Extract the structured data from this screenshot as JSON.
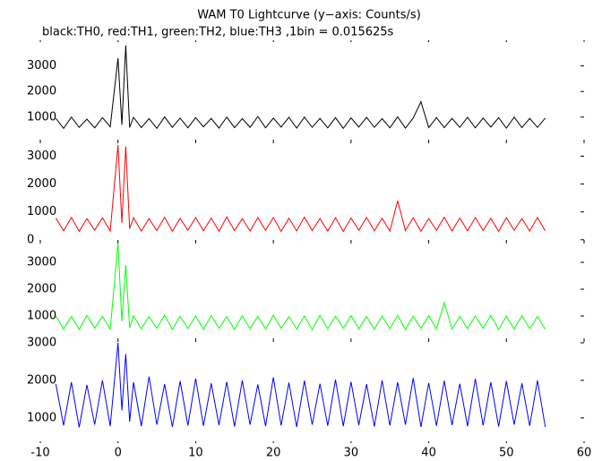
{
  "chart_data": [
    {
      "type": "line",
      "title": "WAM T0 Lightcurve (y−axis: Counts/s)",
      "subtitle": "black:TH0, red:TH1, green:TH2, blue:TH3 ,1bin = 0.015625s",
      "x": [
        -8,
        -7,
        -6,
        -5,
        -4,
        -3,
        -2,
        -1,
        0,
        0.5,
        1,
        1.5,
        2,
        3,
        4,
        5,
        6,
        7,
        8,
        9,
        10,
        11,
        12,
        13,
        14,
        15,
        16,
        17,
        18,
        19,
        20,
        21,
        22,
        23,
        24,
        25,
        26,
        27,
        28,
        29,
        30,
        31,
        32,
        33,
        34,
        35,
        36,
        37,
        38,
        39,
        40,
        41,
        42,
        43,
        44,
        45,
        46,
        47,
        48,
        49,
        50,
        51,
        52,
        53,
        54,
        55
      ],
      "series": [
        {
          "name": "TH0",
          "color": "#000000",
          "values": [
            950,
            560,
            1000,
            600,
            920,
            580,
            980,
            620,
            3300,
            700,
            3800,
            600,
            990,
            590,
            940,
            560,
            1010,
            600,
            960,
            580,
            980,
            620,
            950,
            570,
            1000,
            590,
            940,
            600,
            1020,
            580,
            960,
            610,
            990,
            570,
            1000,
            600,
            950,
            580,
            980,
            560,
            970,
            610,
            990,
            600,
            940,
            580,
            1010,
            570,
            960,
            1600,
            590,
            980,
            590,
            950,
            600,
            990,
            580,
            960,
            610,
            980,
            570,
            1000,
            590,
            950,
            600,
            960
          ]
        }
      ],
      "xlim": [
        -10,
        60
      ],
      "ylim": [
        50,
        4000
      ],
      "yticks": [
        1000,
        2000,
        3000
      ]
    },
    {
      "type": "line",
      "x": [
        -8,
        -7,
        -6,
        -5,
        -4,
        -3,
        -2,
        -1,
        0,
        0.5,
        1,
        1.5,
        2,
        3,
        4,
        5,
        6,
        7,
        8,
        9,
        10,
        11,
        12,
        13,
        14,
        15,
        16,
        17,
        18,
        19,
        20,
        21,
        22,
        23,
        24,
        25,
        26,
        27,
        28,
        29,
        30,
        31,
        32,
        33,
        34,
        35,
        36,
        37,
        38,
        39,
        40,
        41,
        42,
        43,
        44,
        45,
        46,
        47,
        48,
        49,
        50,
        51,
        52,
        53,
        54,
        55
      ],
      "series": [
        {
          "name": "TH1",
          "color": "#ff0000",
          "values": [
            780,
            320,
            800,
            300,
            760,
            340,
            790,
            310,
            3400,
            600,
            3350,
            400,
            790,
            310,
            760,
            330,
            810,
            300,
            770,
            340,
            800,
            320,
            780,
            300,
            820,
            330,
            760,
            310,
            790,
            340,
            800,
            300,
            770,
            320,
            810,
            330,
            760,
            310,
            790,
            300,
            780,
            340,
            800,
            320,
            770,
            310,
            1400,
            330,
            790,
            300,
            760,
            340,
            810,
            310,
            780,
            320,
            800,
            330,
            770,
            300,
            790,
            340,
            760,
            310,
            800,
            320
          ]
        }
      ],
      "xlim": [
        -10,
        60
      ],
      "ylim": [
        -70,
        3530
      ],
      "yticks": [
        0,
        1000,
        2000,
        3000
      ]
    },
    {
      "type": "line",
      "x": [
        -8,
        -7,
        -6,
        -5,
        -4,
        -3,
        -2,
        -1,
        0,
        0.5,
        1,
        1.5,
        2,
        3,
        4,
        5,
        6,
        7,
        8,
        9,
        10,
        11,
        12,
        13,
        14,
        15,
        16,
        17,
        18,
        19,
        20,
        21,
        22,
        23,
        24,
        25,
        26,
        27,
        28,
        29,
        30,
        31,
        32,
        33,
        34,
        35,
        36,
        37,
        38,
        39,
        40,
        41,
        42,
        43,
        44,
        45,
        46,
        47,
        48,
        49,
        50,
        51,
        52,
        53,
        54,
        55
      ],
      "series": [
        {
          "name": "TH2",
          "color": "#00ff00",
          "values": [
            1000,
            520,
            980,
            500,
            1020,
            540,
            990,
            510,
            3700,
            800,
            2900,
            550,
            1010,
            520,
            980,
            540,
            1030,
            500,
            990,
            530,
            1000,
            510,
            1020,
            540,
            980,
            500,
            1010,
            530,
            990,
            520,
            1030,
            540,
            980,
            510,
            1000,
            500,
            1020,
            530,
            990,
            540,
            1010,
            520,
            980,
            510,
            1000,
            530,
            1020,
            500,
            990,
            540,
            1010,
            520,
            1500,
            510,
            980,
            530,
            1000,
            540,
            1020,
            500,
            990,
            520,
            1010,
            530,
            980,
            510
          ]
        }
      ],
      "xlim": [
        -10,
        60
      ],
      "ylim": [
        100,
        3770
      ],
      "yticks": [
        1000,
        2000,
        3000
      ]
    },
    {
      "type": "line",
      "x": [
        -8,
        -7,
        -6,
        -5,
        -4,
        -3,
        -2,
        -1,
        0,
        0.5,
        1,
        1.5,
        2,
        3,
        4,
        5,
        6,
        7,
        8,
        9,
        10,
        11,
        12,
        13,
        14,
        15,
        16,
        17,
        18,
        19,
        20,
        21,
        22,
        23,
        24,
        25,
        26,
        27,
        28,
        29,
        30,
        31,
        32,
        33,
        34,
        35,
        36,
        37,
        38,
        39,
        40,
        41,
        42,
        43,
        44,
        45,
        46,
        47,
        48,
        49,
        50,
        51,
        52,
        53,
        54,
        55
      ],
      "series": [
        {
          "name": "TH3",
          "color": "#0000ff",
          "values": [
            1900,
            800,
            1950,
            750,
            1880,
            820,
            2000,
            780,
            3000,
            1200,
            2700,
            900,
            1950,
            780,
            2100,
            820,
            1900,
            760,
            1980,
            800,
            2050,
            790,
            1920,
            810,
            1960,
            770,
            2000,
            820,
            1890,
            780,
            2080,
            800,
            1940,
            760,
            1990,
            820,
            1910,
            790,
            2020,
            780,
            1960,
            810,
            1900,
            770,
            2000,
            800,
            1950,
            820,
            2060,
            760,
            1930,
            790,
            1990,
            810,
            1910,
            780,
            2040,
            800,
            1950,
            770,
            1980,
            820,
            1920,
            790,
            2000,
            760
          ]
        }
      ],
      "xlim": [
        -10,
        60
      ],
      "ylim": [
        330,
        3070
      ],
      "yticks": [
        1000,
        2000,
        3000
      ],
      "xticks": [
        -10,
        0,
        10,
        20,
        30,
        40,
        50,
        60
      ]
    }
  ]
}
